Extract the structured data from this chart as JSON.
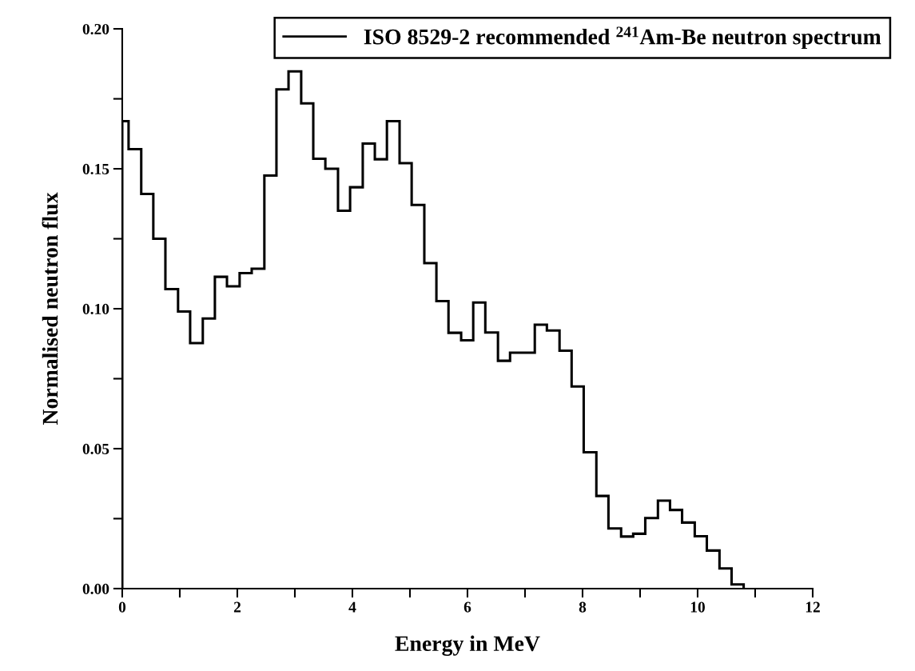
{
  "chart_data": {
    "type": "histogram",
    "xlabel": "Energy in MeV",
    "ylabel": "Normalised neutron flux",
    "bins": [
      0,
      0.11,
      0.33,
      0.54,
      0.75,
      0.97,
      1.18,
      1.4,
      1.61,
      1.82,
      2.04,
      2.25,
      2.47,
      2.68,
      2.89,
      3.11,
      3.32,
      3.53,
      3.75,
      3.96,
      4.18,
      4.39,
      4.6,
      4.82,
      5.03,
      5.25,
      5.46,
      5.67,
      5.89,
      6.1,
      6.31,
      6.53,
      6.74,
      6.96,
      7.17,
      7.38,
      7.6,
      7.81,
      8.02,
      8.24,
      8.45,
      8.67,
      8.88,
      9.09,
      9.31,
      9.52,
      9.73,
      9.95,
      10.16,
      10.38,
      10.59,
      10.8
    ],
    "series": [
      {
        "name": "ISO 8529-2 recommended $^{241}$Am-Be neutron spectrum",
        "color": "#000000",
        "values": [
          0.167,
          0.157,
          0.141,
          0.125,
          0.107,
          0.099,
          0.0877,
          0.0965,
          0.1114,
          0.108,
          0.1127,
          0.1143,
          0.1476,
          0.1784,
          0.1848,
          0.1734,
          0.1536,
          0.15,
          0.135,
          0.1434,
          0.159,
          0.1534,
          0.167,
          0.152,
          0.1371,
          0.1163,
          0.1027,
          0.0914,
          0.0887,
          0.1022,
          0.0915,
          0.0814,
          0.0843,
          0.0843,
          0.0943,
          0.0922,
          0.085,
          0.0722,
          0.0487,
          0.0331,
          0.0215,
          0.0186,
          0.0196,
          0.0252,
          0.0314,
          0.0281,
          0.0236,
          0.0187,
          0.0136,
          0.0072,
          0.0015
        ]
      }
    ],
    "xlim": [
      0,
      12
    ],
    "ylim": [
      0,
      0.2
    ],
    "xticks": [
      0,
      {
        "value": 1,
        "label": null
      },
      2,
      {
        "value": 3,
        "label": null
      },
      4,
      {
        "value": 5,
        "label": null
      },
      6,
      {
        "value": 7,
        "label": null
      },
      8,
      {
        "value": 9,
        "label": null
      },
      10,
      {
        "value": 11,
        "label": null
      },
      12
    ],
    "yticks": [
      {
        "value": 0,
        "label": "0.00"
      },
      {
        "value": 0.025,
        "label": null
      },
      {
        "value": 0.05,
        "label": "0.05"
      },
      {
        "value": 0.075,
        "label": null
      },
      {
        "value": 0.1,
        "label": "0.10"
      },
      {
        "value": 0.125,
        "label": null
      },
      {
        "value": 0.15,
        "label": "0.15"
      },
      {
        "value": 0.175,
        "label": null
      },
      {
        "value": 0.2,
        "label": "0.20"
      }
    ],
    "legend": "top",
    "grid": false
  }
}
